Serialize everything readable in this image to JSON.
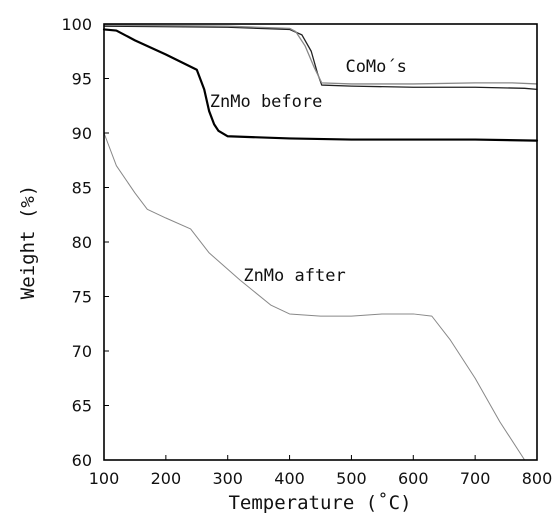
{
  "chart_data": {
    "type": "line",
    "title": "",
    "xlabel": "Temperature (˚C)",
    "ylabel": "Weight (%)",
    "xlim": [
      100,
      800
    ],
    "ylim": [
      60,
      100
    ],
    "xticks": [
      100,
      200,
      300,
      400,
      500,
      600,
      700,
      800
    ],
    "yticks": [
      60,
      65,
      70,
      75,
      80,
      85,
      90,
      95,
      100
    ],
    "grid": false,
    "legend": "none",
    "series": [
      {
        "color": "#222222",
        "width": 1.3,
        "x": [
          100,
          300,
          400,
          420,
          435,
          445,
          452,
          500,
          600,
          700,
          780,
          800
        ],
        "y": [
          99.8,
          99.7,
          99.5,
          99.0,
          97.5,
          95.5,
          94.4,
          94.3,
          94.2,
          94.2,
          94.1,
          94.0
        ]
      },
      {
        "color": "#888888",
        "width": 1.3,
        "x": [
          100,
          300,
          400,
          410,
          425,
          440,
          452,
          500,
          600,
          700,
          760,
          800
        ],
        "y": [
          99.9,
          99.8,
          99.6,
          99.3,
          98.0,
          96.0,
          94.6,
          94.5,
          94.5,
          94.6,
          94.6,
          94.5
        ]
      },
      {
        "color": "#000000",
        "width": 2.2,
        "x": [
          100,
          120,
          150,
          200,
          250,
          262,
          270,
          278,
          285,
          300,
          400,
          500,
          600,
          700,
          800
        ],
        "y": [
          99.5,
          99.4,
          98.5,
          97.2,
          95.8,
          94.0,
          92.0,
          90.8,
          90.2,
          89.7,
          89.5,
          89.4,
          89.4,
          89.4,
          89.3
        ]
      },
      {
        "color": "#888888",
        "width": 1.0,
        "x": [
          100,
          120,
          150,
          170,
          200,
          240,
          270,
          320,
          370,
          400,
          450,
          500,
          550,
          600,
          630,
          660,
          700,
          740,
          780
        ],
        "y": [
          90.0,
          87.0,
          84.5,
          83.0,
          82.2,
          81.2,
          79.0,
          76.5,
          74.2,
          73.4,
          73.2,
          73.2,
          73.4,
          73.4,
          73.2,
          71.0,
          67.5,
          63.5,
          60.0
        ]
      }
    ],
    "annotations": [
      {
        "text": "CoMo´s",
        "x": 540,
        "y": 95.6
      },
      {
        "text": "ZnMo before",
        "x": 362,
        "y": 92.4
      },
      {
        "text": "ZnMo after",
        "x": 408,
        "y": 76.4
      }
    ]
  }
}
